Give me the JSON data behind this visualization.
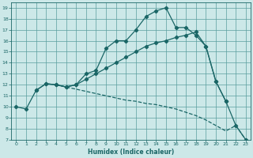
{
  "xlabel": "Humidex (Indice chaleur)",
  "bg_color": "#cce8e8",
  "grid_color": "#5a9e9e",
  "line_color": "#1a6666",
  "xlim": [
    -0.5,
    23.5
  ],
  "ylim": [
    7,
    19.5
  ],
  "xticks": [
    0,
    1,
    2,
    3,
    4,
    5,
    6,
    7,
    8,
    9,
    10,
    11,
    12,
    13,
    14,
    15,
    16,
    17,
    18,
    19,
    20,
    21,
    22,
    23
  ],
  "yticks": [
    7,
    8,
    9,
    10,
    11,
    12,
    13,
    14,
    15,
    16,
    17,
    18,
    19
  ],
  "line1_x": [
    0,
    1,
    2,
    3,
    4,
    5,
    6,
    7,
    8,
    9,
    10,
    11,
    12,
    13,
    14,
    15,
    16,
    17,
    18,
    19,
    20,
    21,
    22,
    23
  ],
  "line1_y": [
    10.0,
    9.8,
    11.5,
    12.1,
    12.0,
    11.8,
    12.0,
    13.0,
    13.3,
    15.3,
    16.0,
    16.0,
    17.0,
    18.2,
    18.7,
    19.0,
    17.2,
    17.2,
    16.5,
    15.5,
    12.3,
    10.5,
    8.3,
    7.0
  ],
  "line2_x": [
    2,
    3,
    4,
    5,
    6,
    7,
    8,
    9,
    10,
    11,
    12,
    13,
    14,
    15,
    16,
    17,
    18,
    19,
    20,
    21
  ],
  "line2_y": [
    11.5,
    12.1,
    12.0,
    11.8,
    12.0,
    12.5,
    13.0,
    13.5,
    14.0,
    14.5,
    15.0,
    15.5,
    15.8,
    16.0,
    16.3,
    16.5,
    16.8,
    15.5,
    12.3,
    10.5
  ],
  "line3_x": [
    4,
    5,
    6,
    7,
    8,
    9,
    10,
    11,
    12,
    13,
    14,
    15,
    16,
    17,
    18,
    19,
    20,
    21,
    22,
    23
  ],
  "line3_y": [
    12.0,
    11.8,
    11.6,
    11.4,
    11.2,
    11.0,
    10.8,
    10.6,
    10.5,
    10.3,
    10.2,
    10.0,
    9.8,
    9.5,
    9.2,
    8.8,
    8.3,
    7.8,
    8.3,
    7.0
  ]
}
